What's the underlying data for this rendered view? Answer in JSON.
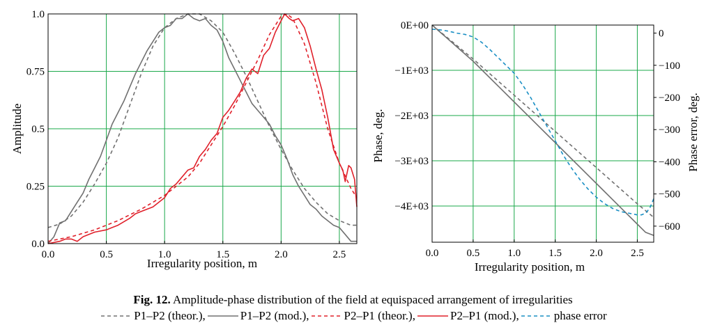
{
  "figure": {
    "caption_label": "Fig. 12.",
    "caption_text": " Amplitude-phase distribution of the field at equispaced arrangement of irregularities",
    "legend": [
      {
        "label": "P1–P2 (theor.)",
        "color": "#707070",
        "dash": "5,4",
        "suffix": ","
      },
      {
        "label": "P1–P2 (mod.)",
        "color": "#707070",
        "dash": "solid",
        "suffix": ","
      },
      {
        "label": "P2–P1 (theor.)",
        "color": "#e0202a",
        "dash": "5,4",
        "suffix": ","
      },
      {
        "label": "P2–P1 (mod.)",
        "color": "#e0202a",
        "dash": "solid",
        "suffix": ","
      },
      {
        "label": "phase error",
        "color": "#1a8fc4",
        "dash": "5,4",
        "suffix": ""
      }
    ]
  },
  "chart_data": [
    {
      "type": "line",
      "xlabel": "Irregularity position, m",
      "ylabel": "Amplitude",
      "xlim": [
        0,
        2.65
      ],
      "ylim": [
        0,
        1.0
      ],
      "xticks": [
        "0.0",
        "0.5",
        "1.0",
        "1.5",
        "2.0",
        "2.5"
      ],
      "xtick_values": [
        0,
        0.5,
        1.0,
        1.5,
        2.0,
        2.5
      ],
      "yticks": [
        "0.0",
        "0.25",
        "0.5",
        "0.75",
        "1.0"
      ],
      "ytick_values": [
        0,
        0.25,
        0.5,
        0.75,
        1.0
      ],
      "grid": true,
      "grid_color": "#1aa84a",
      "series": [
        {
          "name": "P1–P2 (theor.)",
          "color": "#707070",
          "dash": "5,4",
          "x": [
            0,
            0.1,
            0.2,
            0.3,
            0.4,
            0.5,
            0.6,
            0.7,
            0.8,
            0.9,
            1.0,
            1.1,
            1.2,
            1.3,
            1.4,
            1.5,
            1.6,
            1.7,
            1.8,
            1.9,
            2.0,
            2.1,
            2.2,
            2.3,
            2.4,
            2.5,
            2.6,
            2.65
          ],
          "y": [
            0.07,
            0.085,
            0.12,
            0.18,
            0.26,
            0.35,
            0.46,
            0.6,
            0.74,
            0.86,
            0.94,
            0.98,
            1.0,
            1.0,
            0.97,
            0.92,
            0.83,
            0.73,
            0.62,
            0.51,
            0.41,
            0.32,
            0.24,
            0.18,
            0.13,
            0.1,
            0.08,
            0.08
          ]
        },
        {
          "name": "P1–P2 (mod.)",
          "color": "#707070",
          "dash": "solid",
          "x": [
            0,
            0.05,
            0.1,
            0.15,
            0.2,
            0.25,
            0.3,
            0.35,
            0.4,
            0.45,
            0.5,
            0.55,
            0.6,
            0.65,
            0.7,
            0.75,
            0.8,
            0.85,
            0.9,
            0.95,
            1.0,
            1.05,
            1.1,
            1.15,
            1.2,
            1.25,
            1.3,
            1.35,
            1.4,
            1.45,
            1.5,
            1.55,
            1.6,
            1.65,
            1.7,
            1.75,
            1.8,
            1.85,
            1.9,
            1.95,
            2.0,
            2.05,
            2.1,
            2.15,
            2.2,
            2.25,
            2.3,
            2.35,
            2.4,
            2.45,
            2.5,
            2.55,
            2.6,
            2.65
          ],
          "y": [
            0.0,
            0.03,
            0.09,
            0.1,
            0.14,
            0.18,
            0.22,
            0.28,
            0.33,
            0.38,
            0.45,
            0.52,
            0.57,
            0.62,
            0.68,
            0.74,
            0.79,
            0.84,
            0.88,
            0.92,
            0.94,
            0.95,
            0.98,
            0.98,
            1.0,
            0.98,
            0.97,
            0.98,
            0.95,
            0.93,
            0.88,
            0.81,
            0.76,
            0.71,
            0.66,
            0.61,
            0.58,
            0.55,
            0.52,
            0.47,
            0.43,
            0.37,
            0.3,
            0.25,
            0.21,
            0.17,
            0.15,
            0.12,
            0.1,
            0.08,
            0.07,
            0.04,
            0.01,
            0.01
          ]
        },
        {
          "name": "P2–P1 (theor.)",
          "color": "#e0202a",
          "dash": "5,4",
          "x": [
            0,
            0.2,
            0.4,
            0.6,
            0.8,
            1.0,
            1.2,
            1.3,
            1.4,
            1.5,
            1.6,
            1.7,
            1.8,
            1.9,
            2.0,
            2.05,
            2.1,
            2.2,
            2.3,
            2.4,
            2.5,
            2.6,
            2.65
          ],
          "y": [
            0.01,
            0.03,
            0.06,
            0.1,
            0.15,
            0.21,
            0.29,
            0.35,
            0.43,
            0.51,
            0.6,
            0.7,
            0.8,
            0.91,
            0.99,
            1.0,
            0.98,
            0.87,
            0.7,
            0.5,
            0.35,
            0.24,
            0.2
          ]
        },
        {
          "name": "P2–P1 (mod.)",
          "color": "#e0202a",
          "dash": "solid",
          "x": [
            0,
            0.1,
            0.15,
            0.2,
            0.25,
            0.3,
            0.4,
            0.5,
            0.55,
            0.6,
            0.7,
            0.75,
            0.8,
            0.9,
            1.0,
            1.05,
            1.1,
            1.15,
            1.2,
            1.25,
            1.3,
            1.35,
            1.4,
            1.45,
            1.5,
            1.55,
            1.6,
            1.65,
            1.7,
            1.75,
            1.8,
            1.85,
            1.9,
            1.95,
            2.0,
            2.03,
            2.07,
            2.1,
            2.15,
            2.2,
            2.25,
            2.3,
            2.35,
            2.4,
            2.45,
            2.5,
            2.53,
            2.55,
            2.58,
            2.6,
            2.63,
            2.65
          ],
          "y": [
            0.0,
            0.01,
            0.02,
            0.02,
            0.01,
            0.03,
            0.05,
            0.06,
            0.07,
            0.08,
            0.11,
            0.13,
            0.14,
            0.16,
            0.2,
            0.24,
            0.26,
            0.29,
            0.32,
            0.33,
            0.38,
            0.41,
            0.45,
            0.48,
            0.55,
            0.58,
            0.62,
            0.66,
            0.72,
            0.76,
            0.74,
            0.82,
            0.85,
            0.92,
            0.97,
            1.0,
            0.98,
            0.97,
            0.98,
            0.94,
            0.86,
            0.76,
            0.67,
            0.55,
            0.41,
            0.35,
            0.32,
            0.27,
            0.34,
            0.33,
            0.28,
            0.16
          ]
        },
        {
          "name": "phase error",
          "color": "#1a8fc4",
          "dash": "5,4",
          "axis": "right",
          "visible": false,
          "x": [
            0
          ],
          "y": [
            0
          ]
        }
      ]
    },
    {
      "type": "line",
      "xlabel": "Irregularity position, m",
      "ylabel": "Phase, deg.",
      "y2label": "Phase error, deg.",
      "xlim": [
        0,
        2.7
      ],
      "ylim": [
        -4800,
        0
      ],
      "y2lim": [
        -650,
        25
      ],
      "xticks": [
        "0.0",
        "0.5",
        "1.0",
        "1.5",
        "2.0",
        "2.5"
      ],
      "xtick_values": [
        0,
        0.5,
        1.0,
        1.5,
        2.0,
        2.5
      ],
      "yticks": [
        "0E+00",
        "−1E+03",
        "−2E+03",
        "−3E+03",
        "−4E+03"
      ],
      "ytick_values": [
        0,
        -1000,
        -2000,
        -3000,
        -4000
      ],
      "y2ticks": [
        "0",
        "−100",
        "−200",
        "−300",
        "−400",
        "−500",
        "−600"
      ],
      "y2tick_values": [
        0,
        -100,
        -200,
        -300,
        -400,
        -500,
        -600
      ],
      "grid": true,
      "grid_color": "#1aa84a",
      "series": [
        {
          "name": "P1–P2 (theor.)",
          "color": "#707070",
          "dash": "5,4",
          "axis": "left",
          "x": [
            0,
            0.5,
            1.0,
            1.5,
            2.0,
            2.5,
            2.7
          ],
          "y": [
            0,
            -750,
            -1550,
            -2350,
            -3150,
            -3950,
            -4250
          ]
        },
        {
          "name": "P1–P2 (mod.)",
          "color": "#707070",
          "dash": "solid",
          "axis": "left",
          "x": [
            0,
            0.5,
            1.0,
            1.5,
            2.0,
            2.5,
            2.6,
            2.7
          ],
          "y": [
            0,
            -800,
            -1700,
            -2600,
            -3500,
            -4400,
            -4580,
            -4650
          ]
        },
        {
          "name": "phase error",
          "color": "#1a8fc4",
          "dash": "5,4",
          "axis": "right",
          "x": [
            0,
            0.1,
            0.2,
            0.3,
            0.4,
            0.5,
            0.6,
            0.7,
            0.8,
            0.9,
            1.0,
            1.1,
            1.2,
            1.3,
            1.4,
            1.5,
            1.6,
            1.7,
            1.8,
            1.9,
            2.0,
            2.1,
            2.2,
            2.3,
            2.4,
            2.5,
            2.55,
            2.6,
            2.65,
            2.7
          ],
          "y": [
            12,
            10,
            6,
            0,
            -4,
            -12,
            -28,
            -50,
            -75,
            -100,
            -125,
            -160,
            -200,
            -245,
            -290,
            -335,
            -380,
            -420,
            -455,
            -485,
            -510,
            -530,
            -545,
            -555,
            -560,
            -565,
            -565,
            -560,
            -545,
            -515
          ]
        }
      ]
    }
  ]
}
